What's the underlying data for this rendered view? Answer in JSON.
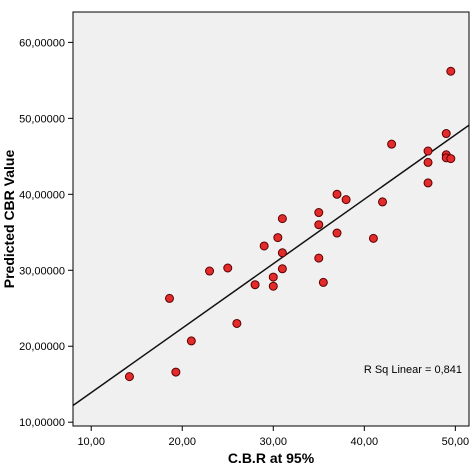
{
  "chart_data": {
    "type": "scatter",
    "title": "",
    "xlabel": "C.B.R at 95%",
    "ylabel": "Predicted CBR Value",
    "xlim": [
      8,
      51.5
    ],
    "ylim": [
      9.5,
      64
    ],
    "x_ticks": [
      10,
      20,
      30,
      40,
      50
    ],
    "x_tick_labels": [
      "10,00",
      "20,00",
      "30,00",
      "40,00",
      "50,00"
    ],
    "y_ticks": [
      10,
      20,
      30,
      40,
      50,
      60
    ],
    "y_tick_labels": [
      "10,00000",
      "20,00000",
      "30,00000",
      "40,00000",
      "50,00000",
      "60,00000"
    ],
    "grid": false,
    "points": [
      {
        "x": 14.2,
        "y": 16.0
      },
      {
        "x": 18.6,
        "y": 26.3
      },
      {
        "x": 19.3,
        "y": 16.6
      },
      {
        "x": 21.0,
        "y": 20.7
      },
      {
        "x": 23.0,
        "y": 29.9
      },
      {
        "x": 25.0,
        "y": 30.3
      },
      {
        "x": 26.0,
        "y": 23.0
      },
      {
        "x": 28.0,
        "y": 28.1
      },
      {
        "x": 29.0,
        "y": 33.2
      },
      {
        "x": 30.0,
        "y": 29.1
      },
      {
        "x": 30.0,
        "y": 27.9
      },
      {
        "x": 30.5,
        "y": 34.3
      },
      {
        "x": 31.0,
        "y": 36.8
      },
      {
        "x": 31.0,
        "y": 32.3
      },
      {
        "x": 31.0,
        "y": 30.2
      },
      {
        "x": 35.0,
        "y": 37.6
      },
      {
        "x": 35.0,
        "y": 36.0
      },
      {
        "x": 35.0,
        "y": 31.6
      },
      {
        "x": 35.5,
        "y": 28.4
      },
      {
        "x": 37.0,
        "y": 40.0
      },
      {
        "x": 37.0,
        "y": 34.9
      },
      {
        "x": 38.0,
        "y": 39.3
      },
      {
        "x": 41.0,
        "y": 34.2
      },
      {
        "x": 42.0,
        "y": 39.0
      },
      {
        "x": 43.0,
        "y": 46.6
      },
      {
        "x": 47.0,
        "y": 45.7
      },
      {
        "x": 47.0,
        "y": 44.2
      },
      {
        "x": 47.0,
        "y": 41.5
      },
      {
        "x": 49.0,
        "y": 48.0
      },
      {
        "x": 49.0,
        "y": 45.2
      },
      {
        "x": 49.0,
        "y": 44.8
      },
      {
        "x": 49.5,
        "y": 44.7
      },
      {
        "x": 49.5,
        "y": 56.2
      }
    ],
    "fit_line": {
      "x": [
        8,
        51.5
      ],
      "y": [
        12.2,
        49.1
      ],
      "label": "R Sq Linear = 0,841"
    },
    "colors": {
      "plot_background": "#f0f0f0",
      "point_fill": "#e32b2b",
      "point_stroke": "#5a0000",
      "line": "#111111"
    }
  }
}
